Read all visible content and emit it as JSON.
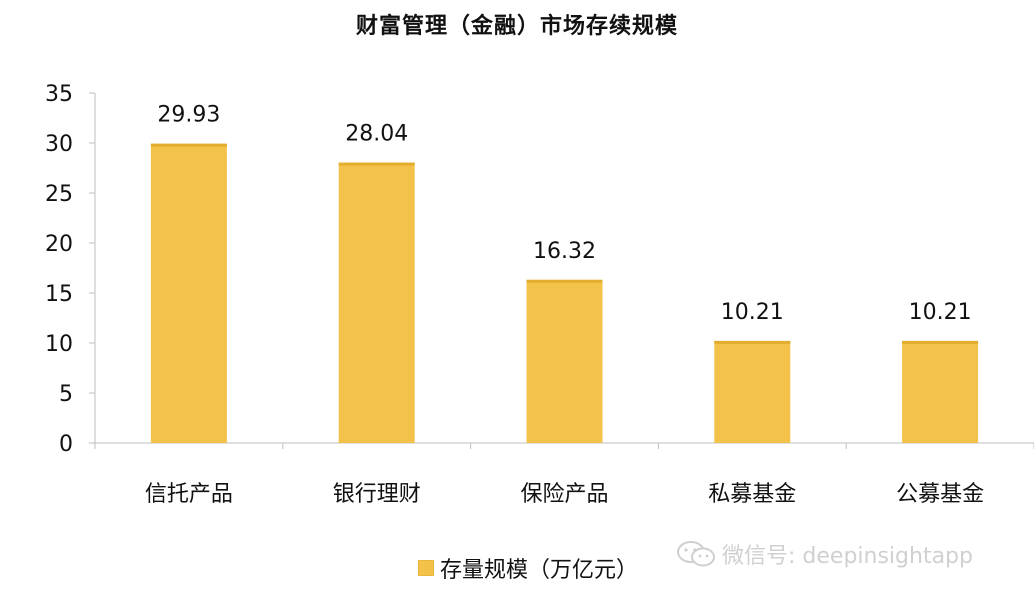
{
  "chart_data": {
    "type": "bar",
    "title": "财富管理（金融）市场存续规模",
    "categories": [
      "信托产品",
      "银行理财",
      "保险产品",
      "私募基金",
      "公募基金"
    ],
    "series": [
      {
        "name": "存量规模（万亿元）",
        "values": [
          29.93,
          28.04,
          16.32,
          10.21,
          10.21
        ]
      }
    ],
    "data_labels": [
      "29.93",
      "28.04",
      "16.32",
      "10.21",
      "10.21"
    ],
    "ylim": [
      0,
      35
    ],
    "yticks": [
      0,
      5,
      10,
      15,
      20,
      25,
      30,
      35
    ],
    "grid": false,
    "legend_position": "bottom",
    "bar_color": "#f3c24a"
  },
  "legend": {
    "label": "存量规模（万亿元）"
  },
  "watermark": {
    "text": "微信号: deepinsightapp",
    "icon": "wechat-icon"
  }
}
